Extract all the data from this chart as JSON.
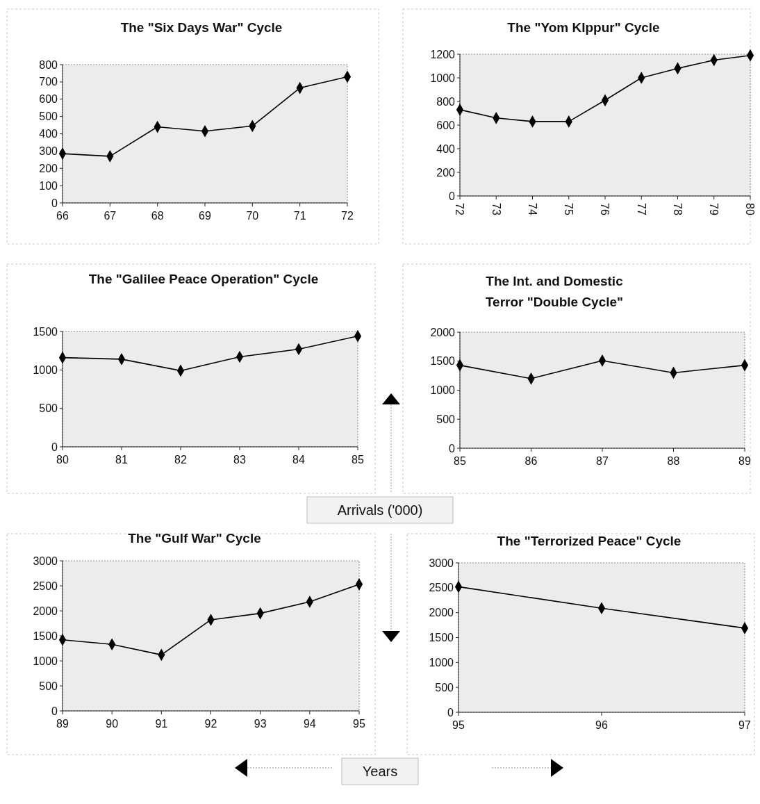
{
  "chart_data": [
    {
      "type": "line",
      "title": "The \"Six Days War\" Cycle",
      "categories": [
        "66",
        "67",
        "68",
        "69",
        "70",
        "71",
        "72"
      ],
      "series": [
        {
          "color": "#000000",
          "values": [
            285,
            270,
            440,
            415,
            445,
            665,
            730
          ]
        }
      ],
      "ylim": [
        0,
        800
      ],
      "yticks": [
        0,
        100,
        200,
        300,
        400,
        500,
        600,
        700,
        800
      ],
      "marker": "diamond",
      "line_style": "solid",
      "grid": false
    },
    {
      "type": "line",
      "title": "The \"Yom KIppur\" Cycle",
      "categories": [
        "72",
        "73",
        "74",
        "75",
        "76",
        "77",
        "78",
        "79",
        "80"
      ],
      "series": [
        {
          "color": "#000000",
          "values": [
            730,
            660,
            630,
            630,
            810,
            1000,
            1080,
            1150,
            1190
          ]
        }
      ],
      "ylim": [
        0,
        1200
      ],
      "yticks": [
        0,
        200,
        400,
        600,
        800,
        1000,
        1200
      ],
      "marker": "diamond",
      "line_style": "solid",
      "grid": false
    },
    {
      "type": "line",
      "title": "The \"Galilee Peace Operation\" Cycle",
      "categories": [
        "80",
        "81",
        "82",
        "83",
        "84",
        "85"
      ],
      "series": [
        {
          "color": "#000000",
          "values": [
            1160,
            1140,
            990,
            1170,
            1270,
            1440
          ]
        }
      ],
      "ylim": [
        0,
        1500
      ],
      "yticks": [
        0,
        500,
        1000,
        1500
      ],
      "marker": "diamond",
      "line_style": "solid",
      "grid": false,
      "annotations": [
        "Arrivals ('000)"
      ]
    },
    {
      "type": "line",
      "title": "The Int. and Domestic Terror \"Double Cycle\"",
      "categories": [
        "85",
        "86",
        "87",
        "88",
        "89"
      ],
      "series": [
        {
          "color": "#000000",
          "values": [
            1430,
            1200,
            1510,
            1300,
            1430
          ]
        }
      ],
      "ylim": [
        0,
        2000
      ],
      "yticks": [
        0,
        500,
        1000,
        1500,
        2000
      ],
      "marker": "diamond",
      "line_style": "solid",
      "grid": false
    },
    {
      "type": "line",
      "title": "The \"Gulf War\" Cycle",
      "categories": [
        "89",
        "90",
        "91",
        "92",
        "93",
        "94",
        "95"
      ],
      "series": [
        {
          "color": "#000000",
          "values": [
            1420,
            1330,
            1120,
            1820,
            1950,
            2180,
            2530
          ]
        }
      ],
      "ylim": [
        0,
        3000
      ],
      "yticks": [
        0,
        500,
        1000,
        1500,
        2000,
        2500,
        3000
      ],
      "marker": "diamond",
      "line_style": "solid",
      "grid": false,
      "annotations": [
        "Years"
      ]
    },
    {
      "type": "line",
      "title": "The \"Terrorized Peace\" Cycle",
      "categories": [
        "95",
        "96",
        "97"
      ],
      "series": [
        {
          "color": "#000000",
          "values": [
            2520,
            2090,
            1690
          ]
        }
      ],
      "ylim": [
        0,
        3000
      ],
      "yticks": [
        0,
        500,
        1000,
        1500,
        2000,
        2500,
        3000
      ],
      "marker": "diamond",
      "line_style": "solid",
      "grid": false
    }
  ]
}
